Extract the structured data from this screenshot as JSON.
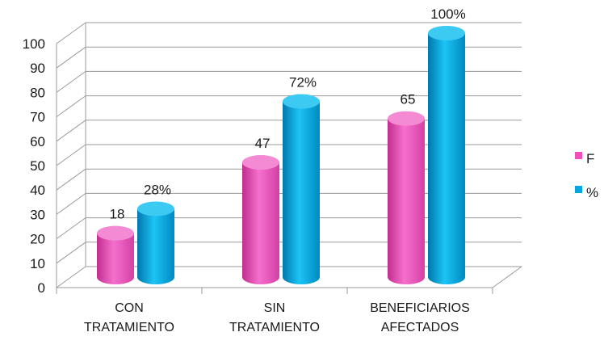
{
  "chart_data": {
    "type": "bar",
    "categories": [
      [
        "CON",
        "TRATAMIENTO"
      ],
      [
        "SIN",
        "TRATAMIENTO"
      ],
      [
        "BENEFICIARIOS",
        "AFECTADOS"
      ]
    ],
    "series": [
      {
        "name": "F",
        "values": [
          18,
          47,
          65
        ],
        "labels": [
          "18",
          "47",
          "65"
        ],
        "color": "#f04fbc"
      },
      {
        "name": "%",
        "values": [
          28,
          72,
          100
        ],
        "labels": [
          "28%",
          "72%",
          "100%"
        ],
        "color": "#00a6e2"
      }
    ],
    "ylim": [
      0,
      100
    ],
    "yticks": [
      0,
      10,
      20,
      30,
      40,
      50,
      60,
      70,
      80,
      90,
      100
    ],
    "grid": true,
    "three_d": true,
    "legend": "right"
  }
}
